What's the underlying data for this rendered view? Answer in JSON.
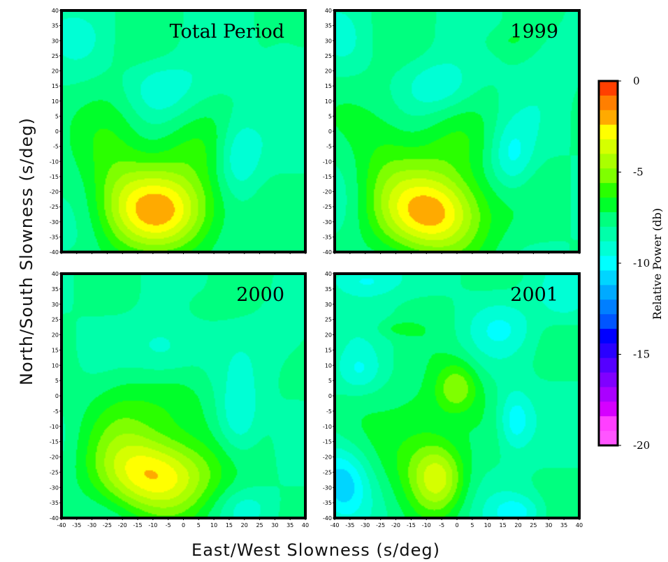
{
  "chart_data": {
    "type": "heatmap",
    "xlabel": "East/West Slowness (s/deg)",
    "ylabel": "North/South Slowness (s/deg)",
    "xlim": [
      -40,
      40
    ],
    "ylim": [
      -40,
      40
    ],
    "ticks": [
      -40,
      -35,
      -30,
      -25,
      -20,
      -15,
      -10,
      -5,
      0,
      5,
      10,
      15,
      20,
      25,
      30,
      35,
      40
    ],
    "colorbar": {
      "label": "Relative Power (db)",
      "range": [
        -20,
        0
      ],
      "tick_values": [
        0,
        -5,
        -10,
        -15,
        -20
      ],
      "tick_labels": [
        "0",
        "-5",
        "-10",
        "-15",
        "-20"
      ],
      "colors": [
        "#ff3f00",
        "#ff7f00",
        "#ffaa00",
        "#ffff00",
        "#d5ff00",
        "#aaff00",
        "#7fff00",
        "#2aff00",
        "#00ff2a",
        "#00ff7f",
        "#00ffaa",
        "#00ffd5",
        "#00ffff",
        "#00d5ff",
        "#00aaff",
        "#007fff",
        "#0055ff",
        "#0000ff",
        "#2a00ff",
        "#5500ff",
        "#8000ff",
        "#aa00ff",
        "#d500ff",
        "#ff3fff",
        "#ff55ff"
      ]
    },
    "panels": [
      {
        "title": "Total Period",
        "peak_db": -2.5,
        "peak_slowness": [
          -7,
          -26
        ],
        "features": [
          {
            "x": -7,
            "y": -26,
            "db": 5.5,
            "sx": 13,
            "sy": 10
          },
          {
            "x": -22,
            "y": -8,
            "db": 1.5,
            "sx": 8,
            "sy": 18
          },
          {
            "x": 0,
            "y": -5,
            "db": 1.2,
            "sx": 10,
            "sy": 8
          },
          {
            "x": 18,
            "y": -8,
            "db": -2.0,
            "sx": 5,
            "sy": 9
          },
          {
            "x": -8,
            "y": 15,
            "db": -1.6,
            "sx": 9,
            "sy": 7
          },
          {
            "x": 33,
            "y": 25,
            "db": -0.8,
            "sx": 6,
            "sy": 8
          },
          {
            "x": -38,
            "y": 32,
            "db": -0.8,
            "sx": 7,
            "sy": 6
          }
        ]
      },
      {
        "title": "1999",
        "peak_db": -2.0,
        "peak_slowness": [
          -7,
          -27
        ],
        "features": [
          {
            "x": -7,
            "y": -27,
            "db": 6.0,
            "sx": 12,
            "sy": 10
          },
          {
            "x": -24,
            "y": -8,
            "db": 1.5,
            "sx": 8,
            "sy": 16
          },
          {
            "x": -2,
            "y": -5,
            "db": 1.3,
            "sx": 10,
            "sy": 8
          },
          {
            "x": 18,
            "y": -8,
            "db": -2.0,
            "sx": 5,
            "sy": 8
          },
          {
            "x": -5,
            "y": 15,
            "db": -1.6,
            "sx": 8,
            "sy": 6
          },
          {
            "x": 32,
            "y": 25,
            "db": -0.8,
            "sx": 6,
            "sy": 8
          },
          {
            "x": 15,
            "y": 30,
            "db": 0.7,
            "sx": 6,
            "sy": 3
          },
          {
            "x": -36,
            "y": 28,
            "db": -0.6,
            "sx": 6,
            "sy": 8
          }
        ]
      },
      {
        "title": "2000",
        "peak_db": -2.5,
        "peak_slowness": [
          -8,
          -26
        ],
        "features": [
          {
            "x": -8,
            "y": -26,
            "db": 5.5,
            "sx": 13,
            "sy": 9
          },
          {
            "x": -20,
            "y": -8,
            "db": 1.5,
            "sx": 9,
            "sy": 14
          },
          {
            "x": -2,
            "y": -5,
            "db": 1.2,
            "sx": 9,
            "sy": 8
          },
          {
            "x": 18,
            "y": -8,
            "db": -2.0,
            "sx": 5,
            "sy": 9
          },
          {
            "x": -6,
            "y": 15,
            "db": -1.6,
            "sx": 8,
            "sy": 7
          },
          {
            "x": 35,
            "y": 22,
            "db": -0.8,
            "sx": 6,
            "sy": 8
          },
          {
            "x": 10,
            "y": 30,
            "db": 0.7,
            "sx": 6,
            "sy": 3
          },
          {
            "x": 20,
            "y": -36,
            "db": -0.9,
            "sx": 6,
            "sy": 4
          }
        ]
      },
      {
        "title": "2001",
        "peak_db": -3.0,
        "peak_slowness": [
          -6,
          -27
        ],
        "features": [
          {
            "x": -6,
            "y": -27,
            "db": 3.6,
            "sx": 6,
            "sy": 8
          },
          {
            "x": 0,
            "y": 3,
            "db": 2.8,
            "sx": 5,
            "sy": 6
          },
          {
            "x": -15,
            "y": -20,
            "db": 1.6,
            "sx": 9,
            "sy": 10
          },
          {
            "x": -10,
            "y": -5,
            "db": 1.1,
            "sx": 8,
            "sy": 8
          },
          {
            "x": -38,
            "y": -28,
            "db": -2.8,
            "sx": 6,
            "sy": 8
          },
          {
            "x": 19,
            "y": -8,
            "db": -2.4,
            "sx": 4,
            "sy": 7
          },
          {
            "x": -30,
            "y": 38,
            "db": -2.0,
            "sx": 8,
            "sy": 4
          },
          {
            "x": 35,
            "y": 32,
            "db": -1.6,
            "sx": 6,
            "sy": 6
          },
          {
            "x": 20,
            "y": -38,
            "db": -1.8,
            "sx": 6,
            "sy": 4
          },
          {
            "x": -32,
            "y": 8,
            "db": -1.4,
            "sx": 5,
            "sy": 5
          },
          {
            "x": 15,
            "y": 22,
            "db": -1.2,
            "sx": 8,
            "sy": 6
          },
          {
            "x": -20,
            "y": 22,
            "db": 0.9,
            "sx": 5,
            "sy": 2
          }
        ]
      }
    ]
  }
}
